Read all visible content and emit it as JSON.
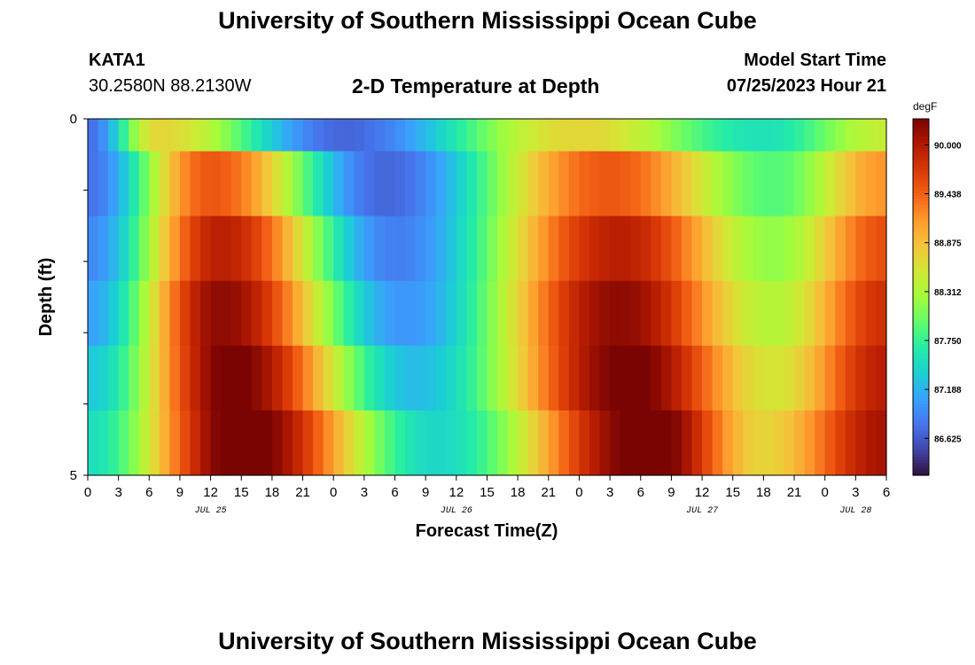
{
  "header": {
    "title": "University of Southern Mississippi Ocean Cube",
    "station_id": "KATA1",
    "coordinates": "30.2580N  88.2130W",
    "subtitle": "2-D Temperature at Depth",
    "model_start_label": "Model Start Time",
    "model_start_value": "07/25/2023 Hour 21"
  },
  "footer": {
    "title": "University of Southern Mississippi Ocean Cube"
  },
  "chart_data": {
    "type": "heatmap",
    "title": "2-D Temperature at Depth",
    "xlabel": "Forecast Time(Z)",
    "ylabel": "Depth (ft)",
    "x_start": 0,
    "x_end": 78,
    "x_step_hours": 1,
    "x_tick_labels": [
      "0",
      "3",
      "6",
      "9",
      "12",
      "15",
      "18",
      "21",
      "0",
      "3",
      "6",
      "9",
      "12",
      "15",
      "18",
      "21",
      "0",
      "3",
      "6",
      "9",
      "12",
      "15",
      "18",
      "21",
      "0",
      "3",
      "6"
    ],
    "date_labels": [
      {
        "label": "JUL 25",
        "hour": 12
      },
      {
        "label": "JUL 26",
        "hour": 36
      },
      {
        "label": "JUL 27",
        "hour": 60
      },
      {
        "label": "JUL 28",
        "hour": 75
      }
    ],
    "y_range": [
      0,
      5
    ],
    "y_tick_labels": [
      "0",
      "5"
    ],
    "depth_levels": [
      0,
      1,
      2,
      3,
      4,
      5
    ],
    "colorbar": {
      "units": "degF",
      "min": 86.2,
      "max": 90.3,
      "ticks": [
        "90.000",
        "89.438",
        "88.875",
        "88.312",
        "87.750",
        "87.188",
        "86.625"
      ],
      "palette": [
        "#30123b",
        "#4145ab",
        "#4675ed",
        "#39a2fc",
        "#1bcfd4",
        "#24eca6",
        "#61fc6c",
        "#a4fc3b",
        "#d1e834",
        "#f3c63a",
        "#fe9b2d",
        "#f36315",
        "#d93806",
        "#b11901",
        "#7a0403"
      ]
    },
    "temperature_model": {
      "description": "Temperature (degF) per depth row over forecast hours; values sampled hourly",
      "row_mean": [
        87.7,
        88.1,
        88.4,
        88.6,
        88.8,
        88.95
      ],
      "row_amplitude": [
        1.0,
        1.4,
        1.55,
        1.6,
        1.55,
        1.5
      ],
      "peak_hours": [
        7,
        12,
        13,
        13,
        14,
        15
      ],
      "trough_hours": [
        25,
        29,
        30,
        31,
        32,
        34
      ],
      "second_peak_hours": [
        48,
        51,
        52,
        52,
        53,
        55
      ],
      "valley_hours": [
        66,
        67,
        67,
        67,
        67,
        66
      ]
    }
  }
}
